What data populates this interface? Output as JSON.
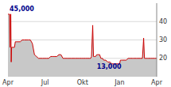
{
  "chart_data": {
    "type": "area",
    "color": "#cc0000",
    "x": [
      0,
      1,
      2,
      3,
      4,
      5,
      6,
      7,
      8,
      9,
      10,
      12,
      14,
      16,
      18,
      20,
      25,
      30,
      35,
      40,
      45,
      50,
      55,
      60,
      65,
      70,
      75,
      80,
      85,
      90,
      95,
      100,
      105,
      110,
      115,
      120,
      125,
      130,
      135,
      140,
      145,
      150,
      155,
      160,
      165,
      170,
      175,
      180,
      185,
      190,
      195,
      200,
      203,
      205,
      208,
      210,
      212,
      215,
      218,
      220,
      222,
      225,
      228,
      230,
      232,
      235,
      240,
      245,
      250,
      255,
      260,
      265,
      270,
      272,
      274,
      276,
      278,
      280,
      285,
      290,
      295,
      300,
      305,
      308,
      310,
      315,
      318,
      320,
      325,
      328,
      330,
      333,
      335,
      337,
      340,
      342,
      345,
      350,
      355,
      360,
      365
    ],
    "values": [
      44,
      44,
      44,
      44,
      44,
      26,
      44,
      44,
      18,
      26,
      26,
      26,
      26,
      26,
      29,
      29,
      29,
      29,
      30,
      30,
      30,
      30,
      30,
      28,
      22,
      21,
      20,
      20,
      20,
      20,
      20,
      20,
      21,
      21,
      21,
      21,
      22,
      22,
      20,
      20,
      20,
      20,
      20,
      20,
      20,
      20,
      20,
      20,
      20,
      20,
      20,
      20,
      20,
      21,
      38,
      21,
      21,
      21,
      22,
      22,
      22,
      22,
      20,
      20,
      20,
      19,
      19,
      18,
      18,
      17,
      17,
      17,
      17,
      17,
      17,
      19,
      19,
      19,
      19,
      19,
      20,
      20,
      20,
      20,
      20,
      20,
      20,
      20,
      20,
      20,
      20,
      31,
      20,
      20,
      20,
      20,
      20,
      20,
      20,
      20,
      20
    ],
    "xlim": [
      0,
      365
    ],
    "ylim": [
      10,
      50
    ],
    "xticks": [
      {
        "value": 0,
        "label": "Apr"
      },
      {
        "value": 91,
        "label": "Jul"
      },
      {
        "value": 183,
        "label": "Okt"
      },
      {
        "value": 274,
        "label": "Jan"
      },
      {
        "value": 365,
        "label": "Apr"
      }
    ],
    "yticks": [
      20,
      30,
      40
    ],
    "grid": true,
    "annotations": [
      {
        "x": 4,
        "y": 48,
        "text": "45,000"
      },
      {
        "x": 218,
        "y": 16.5,
        "text": "13,000"
      }
    ]
  }
}
